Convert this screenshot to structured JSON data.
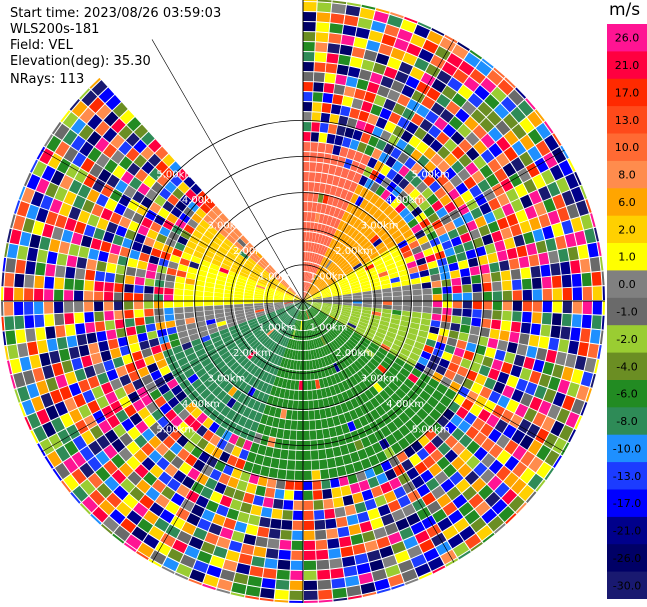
{
  "header": {
    "start_time": "Start time: 2023/08/26 03:59:03",
    "instrument": "WLS200s-181",
    "field": "Field: VEL",
    "elevation": "Elevation(deg): 35.30",
    "nrays": "NRays: 113"
  },
  "chart_data": {
    "type": "ppi",
    "range_ring_labels": [
      "1.00km",
      "2.00km",
      "3.00km",
      "4.00km",
      "5.00km"
    ],
    "range_rings_km": [
      1,
      2,
      3,
      4,
      5
    ],
    "max_range_km": 5.0,
    "missing_sector_deg": [
      337,
      360
    ],
    "colorbar": {
      "unit": "m/s",
      "tick_labels": [
        "26.0",
        "21.0",
        "17.0",
        "13.0",
        "10.0",
        "8.0",
        "6.0",
        "2.0",
        "1.0",
        "0.0",
        "-1.0",
        "-2.0",
        "-4.0",
        "-6.0",
        "-8.0",
        "-10.0",
        "-13.0",
        "-17.0",
        "-21.0",
        "-26.0",
        "-30.0"
      ],
      "colors": [
        "#ff1493",
        "#ff0040",
        "#ff2a00",
        "#ff4a1a",
        "#ff6a33",
        "#ff8c4d",
        "#ffa500",
        "#ffd000",
        "#ffff00",
        "#808080",
        "#6a6a6a",
        "#9acd32",
        "#6b8e23",
        "#228b22",
        "#2e8b57",
        "#1e90ff",
        "#1c3cff",
        "#0000ff",
        "#00008b",
        "#000066",
        "#191970"
      ]
    }
  }
}
